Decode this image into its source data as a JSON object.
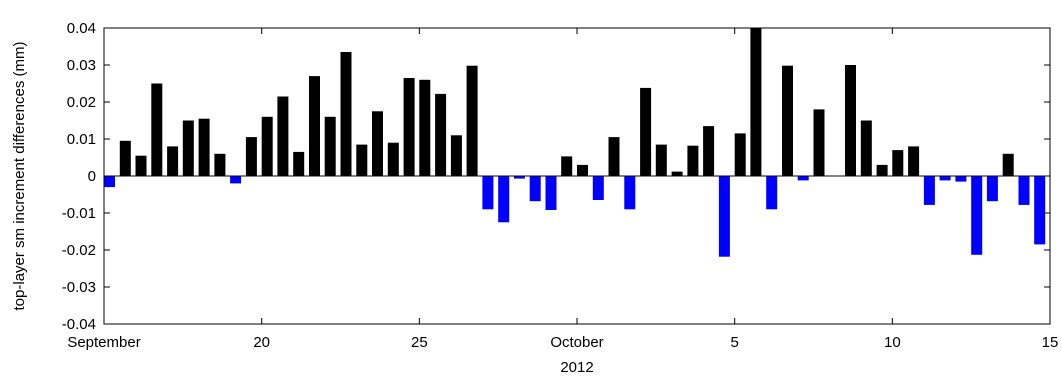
{
  "chart_data": {
    "type": "bar",
    "title": "",
    "xlabel": "2012",
    "ylabel": "top-layer sm increment differences (mm)",
    "ylim": [
      -0.04,
      0.04
    ],
    "yticks": [
      -0.04,
      -0.03,
      -0.02,
      -0.01,
      0,
      0.01,
      0.02,
      0.03,
      0.04
    ],
    "ytick_labels": [
      "-0.04",
      "-0.03",
      "-0.02",
      "-0.01",
      "0",
      "0.01",
      "0.02",
      "0.03",
      "0.04"
    ],
    "xlim": [
      "2012-09-15",
      "2012-10-15"
    ],
    "xticks": [
      {
        "date": "2012-09-15",
        "label": "September"
      },
      {
        "date": "2012-09-20",
        "label": "20"
      },
      {
        "date": "2012-09-25",
        "label": "25"
      },
      {
        "date": "2012-09-30",
        "label": "October"
      },
      {
        "date": "2012-10-05",
        "label": "5"
      },
      {
        "date": "2012-10-10",
        "label": "10"
      },
      {
        "date": "2012-10-15",
        "label": "15"
      }
    ],
    "colors": {
      "positive": "#000000",
      "negative": "#0000ff"
    },
    "grid": false,
    "legend": "none",
    "x": [
      "2012-09-15 00:00",
      "2012-09-15 12:00",
      "2012-09-16 00:00",
      "2012-09-16 12:00",
      "2012-09-17 00:00",
      "2012-09-17 12:00",
      "2012-09-18 00:00",
      "2012-09-18 12:00",
      "2012-09-19 00:00",
      "2012-09-19 12:00",
      "2012-09-20 00:00",
      "2012-09-20 12:00",
      "2012-09-21 00:00",
      "2012-09-21 12:00",
      "2012-09-22 00:00",
      "2012-09-22 12:00",
      "2012-09-23 00:00",
      "2012-09-23 12:00",
      "2012-09-24 00:00",
      "2012-09-24 12:00",
      "2012-09-25 00:00",
      "2012-09-25 12:00",
      "2012-09-26 00:00",
      "2012-09-26 12:00",
      "2012-09-27 00:00",
      "2012-09-27 12:00",
      "2012-09-28 00:00",
      "2012-09-28 12:00",
      "2012-09-29 00:00",
      "2012-09-29 12:00",
      "2012-09-30 00:00",
      "2012-09-30 12:00",
      "2012-10-01 00:00",
      "2012-10-01 12:00",
      "2012-10-02 00:00",
      "2012-10-02 12:00",
      "2012-10-03 00:00",
      "2012-10-03 12:00",
      "2012-10-04 00:00",
      "2012-10-04 12:00",
      "2012-10-05 00:00",
      "2012-10-05 12:00",
      "2012-10-06 00:00",
      "2012-10-06 12:00",
      "2012-10-07 00:00",
      "2012-10-07 12:00",
      "2012-10-08 00:00",
      "2012-10-08 12:00",
      "2012-10-09 00:00",
      "2012-10-09 12:00",
      "2012-10-10 00:00",
      "2012-10-10 12:00",
      "2012-10-11 00:00",
      "2012-10-11 12:00",
      "2012-10-12 00:00",
      "2012-10-12 12:00",
      "2012-10-13 00:00",
      "2012-10-13 12:00",
      "2012-10-14 00:00",
      "2012-10-14 12:00",
      "2012-10-15 00:00"
    ],
    "values": [
      -0.003,
      0.0095,
      0.0055,
      0.025,
      0.008,
      0.015,
      0.0155,
      0.006,
      -0.002,
      0.0105,
      0.016,
      0.0215,
      0.0065,
      0.027,
      0.016,
      0.0335,
      0.0085,
      0.0175,
      0.009,
      0.0265,
      0.026,
      0.0222,
      0.011,
      0.0298,
      -0.009,
      -0.0125,
      -0.0007,
      -0.0068,
      -0.0092,
      0.0053,
      0.003,
      -0.0065,
      0.0105,
      -0.009,
      0.0238,
      0.0085,
      0.0012,
      0.0082,
      0.0135,
      -0.0218,
      0.0115,
      0.04,
      -0.009,
      0.0298,
      -0.0012,
      0.018,
      0.0,
      0.03,
      0.015,
      0.003,
      0.007,
      0.008,
      -0.0078,
      -0.0012,
      -0.0015,
      -0.0213,
      -0.0068,
      0.006,
      -0.0078,
      -0.0185,
      0.0
    ]
  }
}
